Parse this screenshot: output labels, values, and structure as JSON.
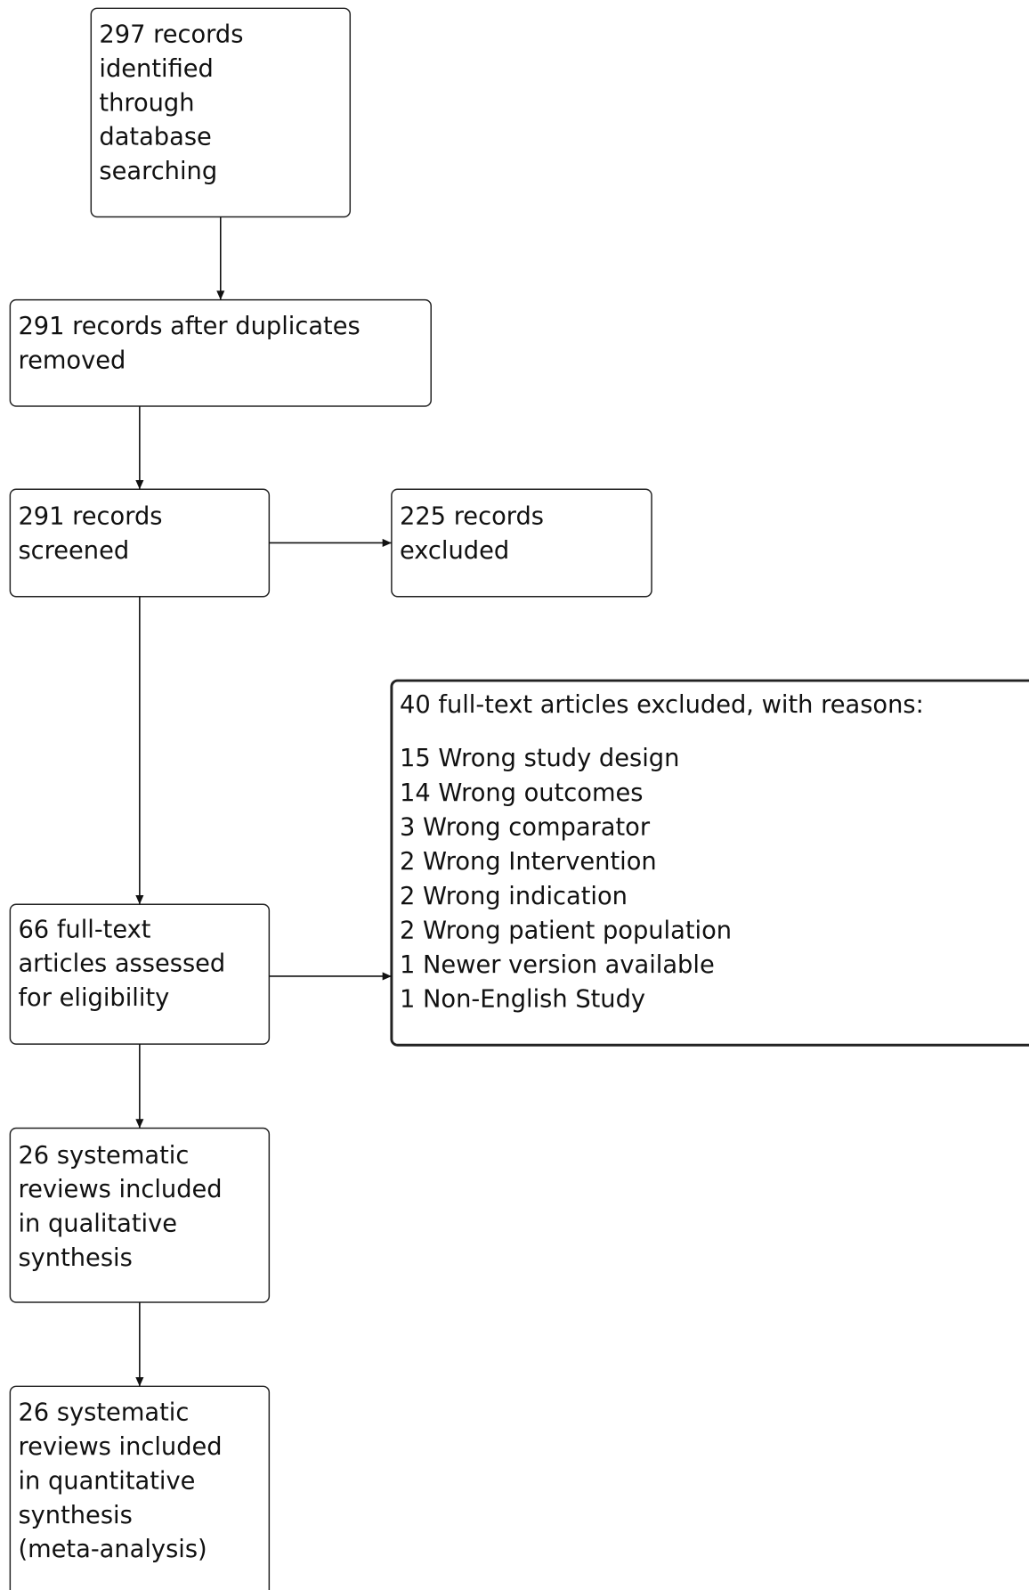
{
  "nodes": [
    {
      "lines": [
        "297 records",
        "identified",
        "through",
        "database",
        "searching"
      ]
    },
    {
      "lines": [
        "291 records after duplicates",
        "removed"
      ]
    },
    {
      "lines": [
        "291 records",
        "screened"
      ]
    },
    {
      "lines": [
        "225 records",
        "excluded"
      ]
    },
    {
      "lines": [
        "66 full-text",
        "articles assessed",
        "for eligibility"
      ]
    },
    {
      "lines": [
        "26 systematic",
        "reviews included",
        "in qualitative",
        "synthesis"
      ]
    },
    {
      "lines": [
        "26 systematic",
        "reviews included",
        "in quantitative",
        "synthesis",
        "(meta-analysis)"
      ]
    }
  ],
  "exclusions": {
    "title": "40 full-text articles excluded, with reasons:",
    "reasons": [
      "15 Wrong study design",
      "14 Wrong outcomes",
      "3 Wrong comparator",
      "2 Wrong Intervention",
      "2 Wrong indication",
      "2 Wrong patient population",
      "1 Newer version available",
      "1 Non-English Study"
    ]
  }
}
